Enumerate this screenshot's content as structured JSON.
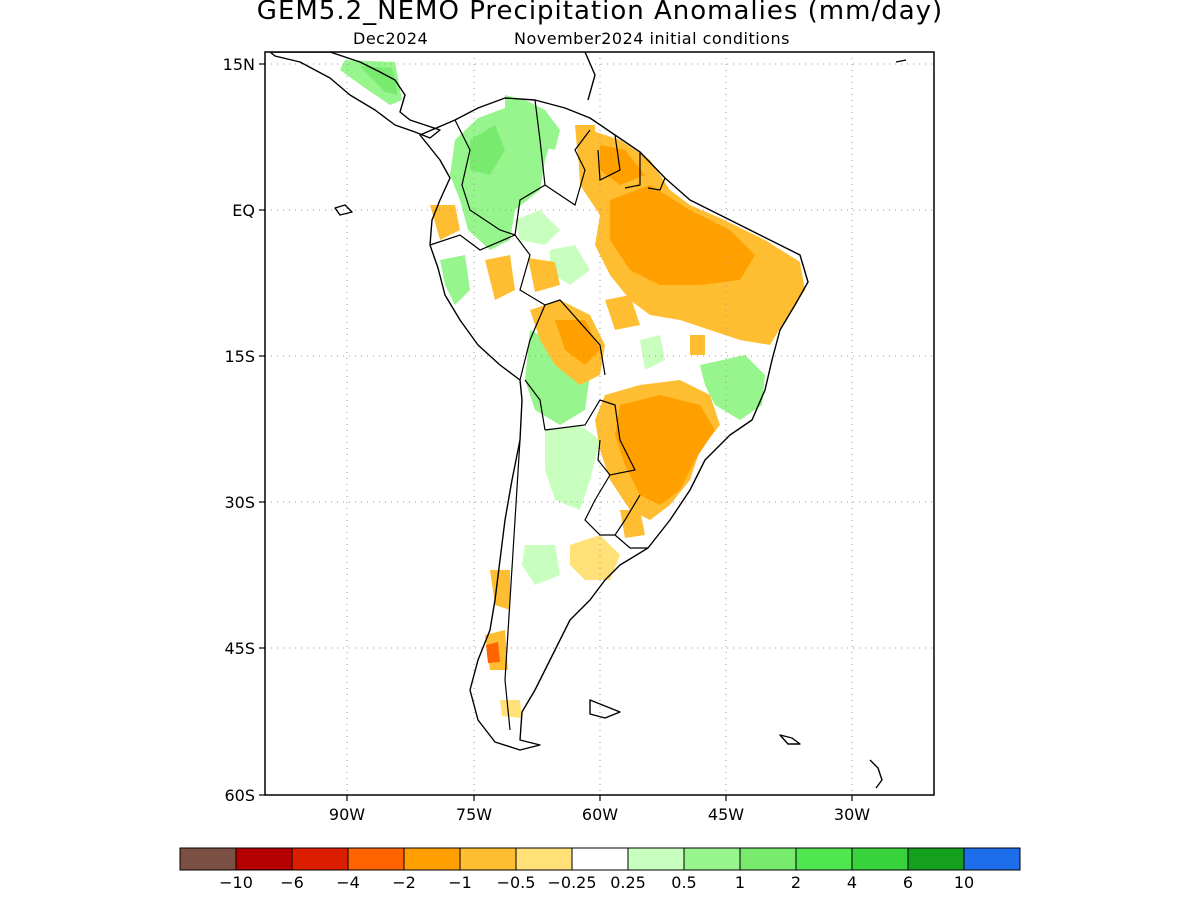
{
  "title": "GEM5.2_NEMO Precipitation Anomalies (mm/day)",
  "subtitle_left": "Dec2024",
  "subtitle_right": "November2024 initial conditions",
  "map": {
    "lat_labels": [
      "15N",
      "EQ",
      "15S",
      "30S",
      "45S",
      "60S"
    ],
    "lon_labels": [
      "90W",
      "75W",
      "60W",
      "45W",
      "30W"
    ],
    "extent": {
      "lon": [
        -100,
        -20
      ],
      "lat": [
        -60,
        16
      ]
    },
    "grid": "dotted",
    "ocean_color": "#ffffff",
    "coastline_color": "#000000"
  },
  "colorbar": {
    "colors": [
      "#7a5044",
      "#b40000",
      "#dc1e00",
      "#ff6400",
      "#ffa000",
      "#ffbe32",
      "#ffe178",
      "#ffffff",
      "#c8ffbe",
      "#96f58c",
      "#78eb6e",
      "#50e650",
      "#37d23c",
      "#14a01e",
      "#1e6eeb"
    ],
    "labels": [
      "−10",
      "−6",
      "−4",
      "−2",
      "−1",
      "−0.5",
      "−0.25",
      "0.25",
      "0.5",
      "1",
      "2",
      "4",
      "6",
      "10"
    ]
  }
}
